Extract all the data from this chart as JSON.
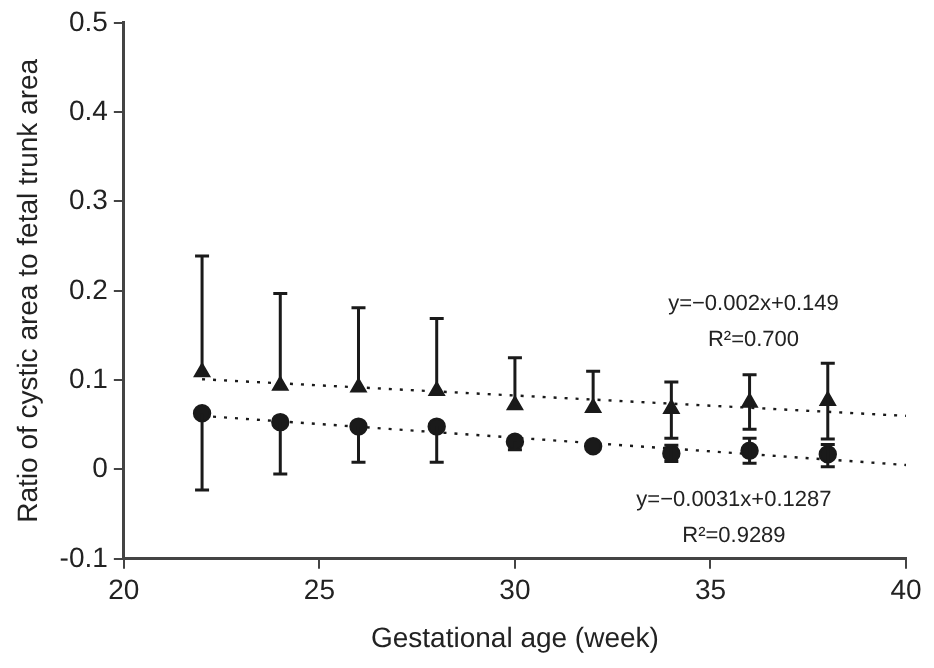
{
  "chart_data": {
    "type": "scatter",
    "xlabel": "Gestational age (week)",
    "ylabel": "Ratio of cystic area to fetal trunk area",
    "xlim": [
      20,
      40
    ],
    "xticks": [
      20,
      25,
      30,
      35,
      40
    ],
    "ylim": [
      -0.1,
      0.5
    ],
    "yticks": [
      -0.1,
      0,
      0.1,
      0.2,
      0.3,
      0.4,
      0.5
    ],
    "grid": false,
    "legend": false,
    "series": [
      {
        "type": "scatter",
        "marker": "triangle",
        "color": "#1a1a1a",
        "x": [
          22,
          24,
          26,
          28,
          30,
          32,
          34,
          36,
          38
        ],
        "values": [
          0.109,
          0.094,
          0.092,
          0.088,
          0.072,
          0.069,
          0.068,
          0.075,
          0.077
        ],
        "errors": [
          [
            0.109,
            0.239
          ],
          [
            0.094,
            0.197
          ],
          [
            0.092,
            0.181
          ],
          [
            0.088,
            0.169
          ],
          [
            0.072,
            0.125
          ],
          [
            0.069,
            0.11
          ],
          [
            0.035,
            0.098
          ],
          [
            0.045,
            0.106
          ],
          [
            0.034,
            0.119
          ]
        ]
      },
      {
        "type": "scatter",
        "marker": "circle",
        "color": "#1a1a1a",
        "x": [
          22,
          24,
          26,
          28,
          30,
          32,
          34,
          36,
          38
        ],
        "values": [
          0.063,
          0.053,
          0.048,
          0.048,
          0.031,
          0.026,
          0.018,
          0.021,
          0.017
        ],
        "errors": [
          [
            -0.023,
            0.063
          ],
          [
            -0.005,
            0.053
          ],
          [
            0.008,
            0.048
          ],
          [
            0.008,
            0.048
          ],
          [
            0.022,
            0.031
          ],
          null,
          [
            0.009,
            0.027
          ],
          [
            0.007,
            0.035
          ],
          [
            0.003,
            0.028
          ]
        ]
      },
      {
        "type": "line",
        "marker": "none",
        "line_style": "dotted",
        "color": "#1a1a1a",
        "x": [
          22,
          40
        ],
        "values": [
          0.101,
          0.06
        ]
      },
      {
        "type": "line",
        "marker": "none",
        "line_style": "dotted",
        "color": "#1a1a1a",
        "x": [
          22,
          40
        ],
        "values": [
          0.06,
          0.005
        ]
      }
    ],
    "annotations": [
      "y=−0.002x+0.149",
      "R²=0.700",
      "y=−0.0031x+0.1287",
      "R²=0.9289"
    ]
  }
}
